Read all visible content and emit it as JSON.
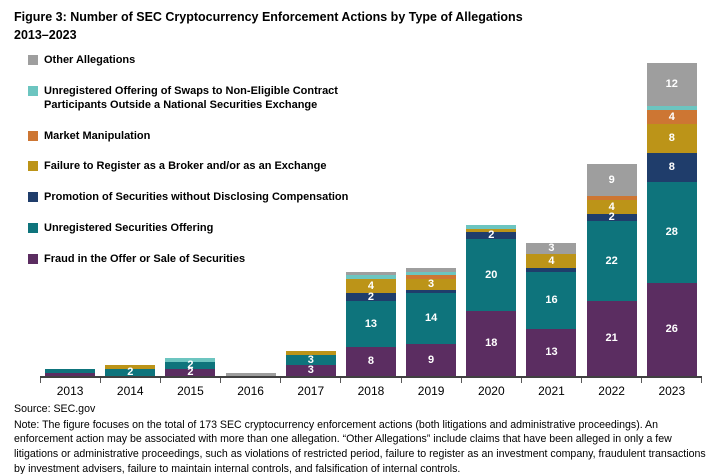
{
  "header": {
    "title_line1": "Figure 3: Number of SEC Cryptocurrency Enforcement Actions by Type of Allegations",
    "title_line2": "2013–2023"
  },
  "chart_data": {
    "type": "bar",
    "stacked": true,
    "title": "Figure 3: Number of SEC Cryptocurrency Enforcement Actions by Type of Allegations 2013–2023",
    "legend_position": "upper-left",
    "grid": false,
    "ylim": [
      0,
      90
    ],
    "value_labels_shown_when": "value >= 2",
    "categories": [
      "2013",
      "2014",
      "2015",
      "2016",
      "2017",
      "2018",
      "2019",
      "2020",
      "2021",
      "2022",
      "2023"
    ],
    "series": [
      {
        "name": "Fraud in the Offer or Sale of Securities",
        "color": "#5b2d61",
        "values": [
          1,
          0,
          2,
          0,
          3,
          8,
          9,
          18,
          13,
          21,
          26
        ]
      },
      {
        "name": "Unregistered Securities Offering",
        "color": "#0e747c",
        "values": [
          1,
          2,
          2,
          0,
          3,
          13,
          14,
          20,
          16,
          22,
          28
        ]
      },
      {
        "name": "Promotion of Securities without Disclosing Compensation",
        "color": "#1f3d6b",
        "values": [
          0,
          0,
          0,
          0,
          0,
          2,
          1,
          2,
          1,
          2,
          8
        ]
      },
      {
        "name": "Failure to Register as a Broker and/or as an Exchange",
        "color": "#bc9418",
        "values": [
          0,
          1,
          0,
          0,
          1,
          4,
          3,
          1,
          4,
          4,
          8
        ]
      },
      {
        "name": "Market Manipulation",
        "color": "#cd7633",
        "values": [
          0,
          0,
          0,
          0,
          0,
          0,
          1,
          0,
          0,
          1,
          4
        ]
      },
      {
        "name": "Unregistered Offering of Swaps to Non-Eligible Contract Participants Outside a National Securities Exchange",
        "color": "#6cc5c0",
        "values": [
          0,
          0,
          1,
          0,
          0,
          1,
          1,
          1,
          0,
          0,
          1
        ]
      },
      {
        "name": "Other Allegations",
        "color": "#9e9e9e",
        "values": [
          0,
          0,
          0,
          1,
          0,
          1,
          1,
          0,
          3,
          9,
          12
        ]
      }
    ],
    "totals_by_year": [
      2,
      3,
      5,
      1,
      7,
      29,
      30,
      42,
      37,
      59,
      87
    ]
  },
  "footer": {
    "source": "Source: SEC.gov",
    "note": "Note: The figure focuses on the total of 173 SEC cryptocurrency enforcement actions (both litigations and administrative proceedings). An enforcement action may be associated with more than one allegation. “Other Allegations” include claims that have been alleged in only a few litigations or administrative proceedings, such as violations of restricted period, failure to register as an investment company, fraudulent transactions by investment advisers, failure to maintain internal controls, and falsification of internal controls."
  }
}
